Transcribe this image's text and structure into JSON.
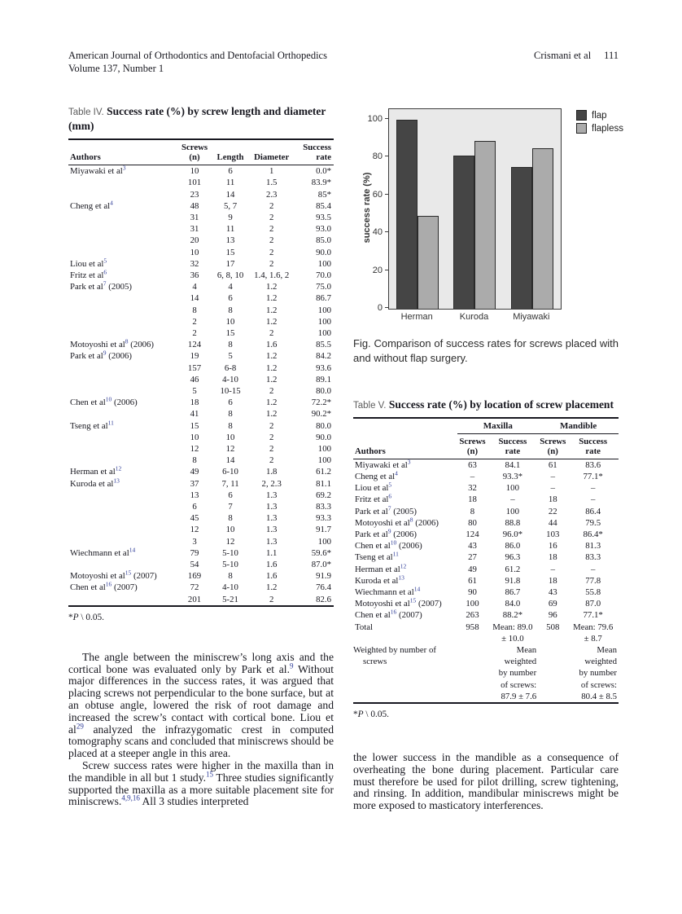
{
  "header": {
    "journal": "American Journal of Orthodontics and Dentofacial Orthopedics",
    "volume": "Volume 137, Number 1",
    "citation": "Crismani et al",
    "page_number": "111"
  },
  "table4": {
    "label": "Table IV.",
    "caption": "Success rate (%) by screw length and diameter (mm)",
    "columns": [
      {
        "lines": [
          "",
          "Authors"
        ]
      },
      {
        "lines": [
          "Screws",
          "(n)"
        ]
      },
      {
        "lines": [
          "",
          "Length"
        ]
      },
      {
        "lines": [
          "",
          "Diameter"
        ]
      },
      {
        "lines": [
          "Success",
          "rate"
        ]
      }
    ],
    "rows": [
      {
        "author": "Miyawaki et al",
        "sup": "3",
        "year": "",
        "cells": [
          "10",
          "6",
          "1",
          "0.0*"
        ]
      },
      {
        "author": "",
        "sup": "",
        "year": "",
        "cells": [
          "101",
          "11",
          "1.5",
          "83.9*"
        ]
      },
      {
        "author": "",
        "sup": "",
        "year": "",
        "cells": [
          "23",
          "14",
          "2.3",
          "85*"
        ]
      },
      {
        "author": "Cheng et al",
        "sup": "4",
        "year": "",
        "cells": [
          "48",
          "5, 7",
          "2",
          "85.4"
        ]
      },
      {
        "author": "",
        "sup": "",
        "year": "",
        "cells": [
          "31",
          "9",
          "2",
          "93.5"
        ]
      },
      {
        "author": "",
        "sup": "",
        "year": "",
        "cells": [
          "31",
          "11",
          "2",
          "93.0"
        ]
      },
      {
        "author": "",
        "sup": "",
        "year": "",
        "cells": [
          "20",
          "13",
          "2",
          "85.0"
        ]
      },
      {
        "author": "",
        "sup": "",
        "year": "",
        "cells": [
          "10",
          "15",
          "2",
          "90.0"
        ]
      },
      {
        "author": "Liou et al",
        "sup": "5",
        "year": "",
        "cells": [
          "32",
          "17",
          "2",
          "100"
        ]
      },
      {
        "author": "Fritz et al",
        "sup": "6",
        "year": "",
        "cells": [
          "36",
          "6, 8, 10",
          "1.4, 1.6, 2",
          "70.0"
        ]
      },
      {
        "author": "Park et al",
        "sup": "7",
        "year": "(2005)",
        "cells": [
          "4",
          "4",
          "1.2",
          "75.0"
        ]
      },
      {
        "author": "",
        "sup": "",
        "year": "",
        "cells": [
          "14",
          "6",
          "1.2",
          "86.7"
        ]
      },
      {
        "author": "",
        "sup": "",
        "year": "",
        "cells": [
          "8",
          "8",
          "1.2",
          "100"
        ]
      },
      {
        "author": "",
        "sup": "",
        "year": "",
        "cells": [
          "2",
          "10",
          "1.2",
          "100"
        ]
      },
      {
        "author": "",
        "sup": "",
        "year": "",
        "cells": [
          "2",
          "15",
          "2",
          "100"
        ]
      },
      {
        "author": "Motoyoshi et al",
        "sup": "8",
        "year": "(2006)",
        "cells": [
          "124",
          "8",
          "1.6",
          "85.5"
        ]
      },
      {
        "author": "Park et al",
        "sup": "9",
        "year": "(2006)",
        "cells": [
          "19",
          "5",
          "1.2",
          "84.2"
        ]
      },
      {
        "author": "",
        "sup": "",
        "year": "",
        "cells": [
          "157",
          "6-8",
          "1.2",
          "93.6"
        ]
      },
      {
        "author": "",
        "sup": "",
        "year": "",
        "cells": [
          "46",
          "4-10",
          "1.2",
          "89.1"
        ]
      },
      {
        "author": "",
        "sup": "",
        "year": "",
        "cells": [
          "5",
          "10-15",
          "2",
          "80.0"
        ]
      },
      {
        "author": "Chen et al",
        "sup": "10",
        "year": "(2006)",
        "cells": [
          "18",
          "6",
          "1.2",
          "72.2*"
        ]
      },
      {
        "author": "",
        "sup": "",
        "year": "",
        "cells": [
          "41",
          "8",
          "1.2",
          "90.2*"
        ]
      },
      {
        "author": "Tseng et al",
        "sup": "11",
        "year": "",
        "cells": [
          "15",
          "8",
          "2",
          "80.0"
        ]
      },
      {
        "author": "",
        "sup": "",
        "year": "",
        "cells": [
          "10",
          "10",
          "2",
          "90.0"
        ]
      },
      {
        "author": "",
        "sup": "",
        "year": "",
        "cells": [
          "12",
          "12",
          "2",
          "100"
        ]
      },
      {
        "author": "",
        "sup": "",
        "year": "",
        "cells": [
          "8",
          "14",
          "2",
          "100"
        ]
      },
      {
        "author": "Herman et al",
        "sup": "12",
        "year": "",
        "cells": [
          "49",
          "6-10",
          "1.8",
          "61.2"
        ]
      },
      {
        "author": "Kuroda et al",
        "sup": "13",
        "year": "",
        "cells": [
          "37",
          "7, 11",
          "2, 2.3",
          "81.1"
        ]
      },
      {
        "author": "",
        "sup": "",
        "year": "",
        "cells": [
          "13",
          "6",
          "1.3",
          "69.2"
        ]
      },
      {
        "author": "",
        "sup": "",
        "year": "",
        "cells": [
          "6",
          "7",
          "1.3",
          "83.3"
        ]
      },
      {
        "author": "",
        "sup": "",
        "year": "",
        "cells": [
          "45",
          "8",
          "1.3",
          "93.3"
        ]
      },
      {
        "author": "",
        "sup": "",
        "year": "",
        "cells": [
          "12",
          "10",
          "1.3",
          "91.7"
        ]
      },
      {
        "author": "",
        "sup": "",
        "year": "",
        "cells": [
          "3",
          "12",
          "1.3",
          "100"
        ]
      },
      {
        "author": "Wiechmann et al",
        "sup": "14",
        "year": "",
        "cells": [
          "79",
          "5-10",
          "1.1",
          "59.6*"
        ]
      },
      {
        "author": "",
        "sup": "",
        "year": "",
        "cells": [
          "54",
          "5-10",
          "1.6",
          "87.0*"
        ]
      },
      {
        "author": "Motoyoshi et al",
        "sup": "15",
        "year": "(2007)",
        "cells": [
          "169",
          "8",
          "1.6",
          "91.9"
        ]
      },
      {
        "author": "Chen et al",
        "sup": "16",
        "year": "(2007)",
        "cells": [
          "72",
          "4-10",
          "1.2",
          "76.4"
        ]
      },
      {
        "author": "",
        "sup": "",
        "year": "",
        "cells": [
          "201",
          "5-21",
          "2",
          "82.6"
        ]
      }
    ],
    "footnote": {
      "star": "*",
      "p": "P",
      "rest": " \\ 0.05."
    }
  },
  "figure": {
    "caption": "Fig. Comparison of success rates for screws placed with and without flap surgery."
  },
  "chart_data": {
    "type": "bar",
    "categories": [
      "Herman",
      "Kuroda",
      "Miyawaki"
    ],
    "series": [
      {
        "name": "flap",
        "color": "#454545",
        "values": [
          100,
          81,
          75
        ]
      },
      {
        "name": "flapless",
        "color": "#ababab",
        "values": [
          49,
          88.5,
          85
        ]
      }
    ],
    "ylabel": "success rate (%)",
    "xlabel": "",
    "title": "",
    "yticks": [
      0,
      20,
      40,
      60,
      80,
      100
    ],
    "ylim": [
      0,
      105.5
    ],
    "grid": false,
    "legend_position": "top-right-outside",
    "panel_bg": "#e9e9e9"
  },
  "table5": {
    "label": "Table V.",
    "caption": "Success rate (%) by location of screw placement",
    "group_columns": [
      {
        "label": "Maxilla",
        "span": 2
      },
      {
        "label": "Mandible",
        "span": 2
      }
    ],
    "columns": [
      {
        "lines": [
          "",
          "Authors"
        ]
      },
      {
        "lines": [
          "Screws",
          "(n)"
        ]
      },
      {
        "lines": [
          "Success",
          "rate"
        ]
      },
      {
        "lines": [
          "Screws",
          "(n)"
        ]
      },
      {
        "lines": [
          "Success",
          "rate"
        ]
      }
    ],
    "rows": [
      {
        "author": "Miyawaki et al",
        "sup": "3",
        "year": "",
        "cells": [
          "63",
          "84.1",
          "61",
          "83.6"
        ]
      },
      {
        "author": "Cheng et al",
        "sup": "4",
        "year": "",
        "cells": [
          "–",
          "93.3*",
          "–",
          "77.1*"
        ]
      },
      {
        "author": "Liou et al",
        "sup": "5",
        "year": "",
        "cells": [
          "32",
          "100",
          "–",
          "–"
        ]
      },
      {
        "author": "Fritz et al",
        "sup": "6",
        "year": "",
        "cells": [
          "18",
          "–",
          "18",
          "–"
        ]
      },
      {
        "author": "Park et al",
        "sup": "7",
        "year": "(2005)",
        "cells": [
          "8",
          "100",
          "22",
          "86.4"
        ]
      },
      {
        "author": "Motoyoshi et al",
        "sup": "8",
        "year": "(2006)",
        "cells": [
          "80",
          "88.8",
          "44",
          "79.5"
        ]
      },
      {
        "author": "Park et al",
        "sup": "9",
        "year": "(2006)",
        "cells": [
          "124",
          "96.0*",
          "103",
          "86.4*"
        ]
      },
      {
        "author": "Chen et al",
        "sup": "10",
        "year": "(2006)",
        "cells": [
          "43",
          "86.0",
          "16",
          "81.3"
        ]
      },
      {
        "author": "Tseng et al",
        "sup": "11",
        "year": "",
        "cells": [
          "27",
          "96.3",
          "18",
          "83.3"
        ]
      },
      {
        "author": "Herman et al",
        "sup": "12",
        "year": "",
        "cells": [
          "49",
          "61.2",
          "–",
          "–"
        ]
      },
      {
        "author": "Kuroda et al",
        "sup": "13",
        "year": "",
        "cells": [
          "61",
          "91.8",
          "18",
          "77.8"
        ]
      },
      {
        "author": "Wiechmann et al",
        "sup": "14",
        "year": "",
        "cells": [
          "90",
          "86.7",
          "43",
          "55.8"
        ]
      },
      {
        "author": "Motoyoshi et al",
        "sup": "15",
        "year": "(2007)",
        "cells": [
          "100",
          "84.0",
          "69",
          "87.0"
        ]
      },
      {
        "author": "Chen et al",
        "sup": "16",
        "year": "(2007)",
        "cells": [
          "263",
          "88.2*",
          "96",
          "77.1*"
        ]
      },
      {
        "author": "Total",
        "sup": "",
        "year": "",
        "cells": [
          "958",
          "Mean: 89.0\n± 10.0",
          "508",
          "Mean: 79.6\n± 8.7"
        ]
      },
      {
        "author": "Weighted by number of screws",
        "sup": "",
        "year": "",
        "cls": "weighted",
        "cells": [
          "",
          "Mean weighted\nby number\nof screws:\n87.9 ± 7.6",
          "",
          "Mean weighted\nby number\nof screws:\n80.4 ± 8.5"
        ]
      }
    ],
    "footnote": {
      "star": "*",
      "p": "P",
      "rest": " \\ 0.05."
    }
  },
  "body_left": {
    "paragraphs": [
      {
        "indent": true,
        "segments": [
          {
            "t": "The angle between the miniscrew’s long axis and the cortical bone was evaluated only by Park et al."
          },
          {
            "sup": "9"
          },
          {
            "t": " Without major differences in the success rates, it was argued that placing screws not perpendicular to the bone surface, but at an obtuse angle, lowered the risk of root damage and increased the screw’s contact with cortical bone. Liou et al"
          },
          {
            "sup": "29"
          },
          {
            "t": " analyzed the infrazygomatic crest in computed tomography scans and concluded that miniscrews should be placed at a steeper angle in this area."
          }
        ]
      },
      {
        "indent": true,
        "segments": [
          {
            "t": "Screw success rates were higher in the maxilla than in the mandible in all but 1 study."
          },
          {
            "sup": "15"
          },
          {
            "t": " Three studies significantly supported the maxilla as a more suitable placement site for miniscrews."
          },
          {
            "sup": "4,9,16"
          },
          {
            "t": " All 3 studies interpreted"
          }
        ]
      }
    ]
  },
  "body_right": {
    "paragraphs": [
      {
        "indent": false,
        "segments": [
          {
            "t": "the lower success in the mandible as a consequence of overheating the bone during placement. Particular care must therefore be used for pilot drilling, screw tightening, and rinsing. In addition, mandibular miniscrews might be more exposed to masticatory interferences."
          }
        ]
      }
    ]
  }
}
